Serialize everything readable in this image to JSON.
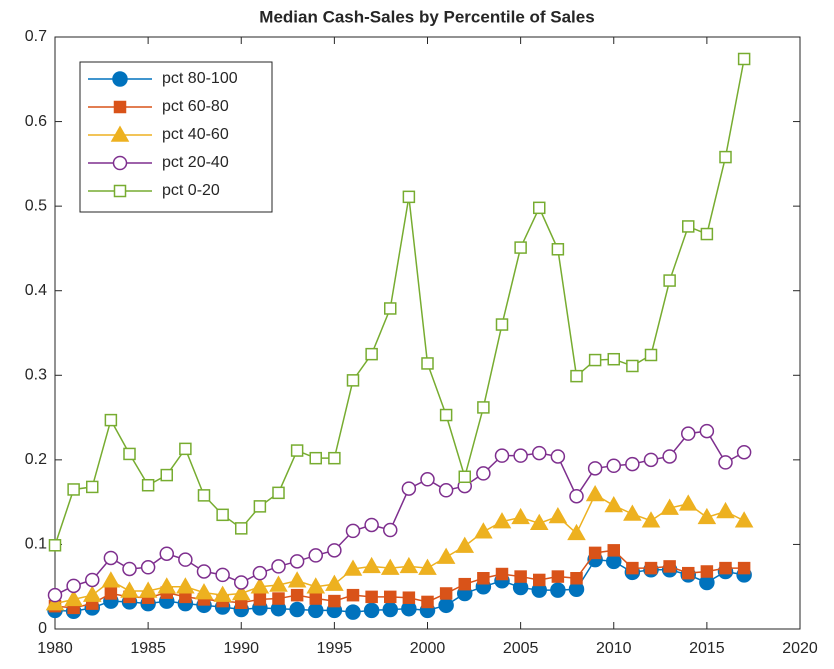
{
  "chart_data": {
    "type": "line",
    "title": "Median Cash-Sales by Percentile of Sales",
    "x": [
      1980,
      1981,
      1982,
      1983,
      1984,
      1985,
      1986,
      1987,
      1988,
      1989,
      1990,
      1991,
      1992,
      1993,
      1994,
      1995,
      1996,
      1997,
      1998,
      1999,
      2000,
      2001,
      2002,
      2003,
      2004,
      2005,
      2006,
      2007,
      2008,
      2009,
      2010,
      2011,
      2012,
      2013,
      2014,
      2015,
      2016,
      2017
    ],
    "series": [
      {
        "name": "pct 80-100",
        "color": "#0072bd",
        "marker": "circle",
        "filled": true,
        "values": [
          0.022,
          0.021,
          0.025,
          0.033,
          0.032,
          0.03,
          0.033,
          0.03,
          0.028,
          0.026,
          0.023,
          0.025,
          0.024,
          0.023,
          0.022,
          0.022,
          0.02,
          0.022,
          0.023,
          0.024,
          0.022,
          0.028,
          0.042,
          0.05,
          0.057,
          0.049,
          0.046,
          0.046,
          0.047,
          0.082,
          0.08,
          0.067,
          0.07,
          0.07,
          0.064,
          0.055,
          0.068,
          0.064
        ]
      },
      {
        "name": "pct 60-80",
        "color": "#d95319",
        "marker": "square",
        "filled": true,
        "values": [
          0.027,
          0.025,
          0.03,
          0.042,
          0.038,
          0.037,
          0.043,
          0.038,
          0.035,
          0.033,
          0.031,
          0.035,
          0.036,
          0.04,
          0.036,
          0.033,
          0.04,
          0.038,
          0.038,
          0.037,
          0.032,
          0.042,
          0.053,
          0.06,
          0.065,
          0.062,
          0.058,
          0.062,
          0.06,
          0.09,
          0.093,
          0.072,
          0.072,
          0.074,
          0.066,
          0.068,
          0.072,
          0.072
        ]
      },
      {
        "name": "pct 40-60",
        "color": "#edb120",
        "marker": "triangle",
        "filled": true,
        "values": [
          0.03,
          0.035,
          0.04,
          0.057,
          0.045,
          0.045,
          0.05,
          0.05,
          0.043,
          0.04,
          0.042,
          0.05,
          0.052,
          0.057,
          0.05,
          0.053,
          0.071,
          0.074,
          0.072,
          0.074,
          0.072,
          0.085,
          0.098,
          0.115,
          0.127,
          0.132,
          0.125,
          0.133,
          0.113,
          0.159,
          0.146,
          0.136,
          0.128,
          0.143,
          0.148,
          0.132,
          0.139,
          0.128
        ]
      },
      {
        "name": "pct 20-40",
        "color": "#7e2f8e",
        "marker": "circle",
        "filled": false,
        "values": [
          0.04,
          0.051,
          0.058,
          0.084,
          0.071,
          0.073,
          0.089,
          0.082,
          0.068,
          0.064,
          0.055,
          0.066,
          0.074,
          0.08,
          0.087,
          0.093,
          0.116,
          0.123,
          0.117,
          0.166,
          0.177,
          0.164,
          0.169,
          0.184,
          0.205,
          0.205,
          0.208,
          0.204,
          0.157,
          0.19,
          0.193,
          0.195,
          0.2,
          0.204,
          0.231,
          0.234,
          0.197,
          0.209
        ]
      },
      {
        "name": "pct 0-20",
        "color": "#77ac30",
        "marker": "square",
        "filled": false,
        "values": [
          0.099,
          0.165,
          0.168,
          0.247,
          0.207,
          0.17,
          0.182,
          0.213,
          0.158,
          0.135,
          0.119,
          0.145,
          0.161,
          0.211,
          0.202,
          0.202,
          0.294,
          0.325,
          0.379,
          0.511,
          0.314,
          0.253,
          0.18,
          0.262,
          0.36,
          0.451,
          0.498,
          0.449,
          0.299,
          0.318,
          0.319,
          0.311,
          0.324,
          0.412,
          0.476,
          0.467,
          0.558,
          0.674
        ]
      }
    ],
    "xlim": [
      1980,
      2020
    ],
    "xticks": [
      1980,
      1985,
      1990,
      1995,
      2000,
      2005,
      2010,
      2015,
      2020
    ],
    "ylim": [
      0,
      0.7
    ],
    "yticks": [
      0,
      0.1,
      0.2,
      0.3,
      0.4,
      0.5,
      0.6,
      0.7
    ],
    "legend": "northwest"
  }
}
